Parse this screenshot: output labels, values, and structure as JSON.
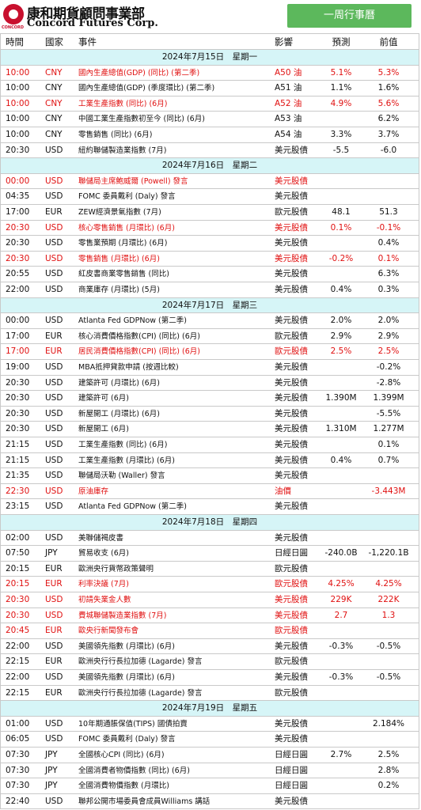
{
  "header": {
    "logo_brand": "CONCORD",
    "logo_title": "康和期貨顧問事業部",
    "logo_subtitle": "Concord Futures Corp.",
    "tab": "一周行事曆"
  },
  "table": {
    "columns": [
      "時間",
      "國家",
      "事件",
      "影響",
      "預測",
      "前值"
    ],
    "days": [
      {
        "date": "2024年7月15日　星期一",
        "rows": [
          {
            "time": "10:00",
            "country": "CNY",
            "event": "國內生產總值(GDP) (同比) (第二季)",
            "impact": "A50 油",
            "forecast": "5.1%",
            "previous": "5.3%",
            "important": true
          },
          {
            "time": "10:00",
            "country": "CNY",
            "event": "國內生產總值(GDP) (季度環比) (第二季)",
            "impact": "A51 油",
            "forecast": "1.1%",
            "previous": "1.6%"
          },
          {
            "time": "10:00",
            "country": "CNY",
            "event": "工業生產指數 (同比) (6月)",
            "impact": "A52 油",
            "forecast": "4.9%",
            "previous": "5.6%",
            "important": true
          },
          {
            "time": "10:00",
            "country": "CNY",
            "event": "中國工業生產指數初至今 (同比) (6月)",
            "impact": "A53 油",
            "previous": "6.2%"
          },
          {
            "time": "10:00",
            "country": "CNY",
            "event": "零售銷售 (同比) (6月)",
            "impact": "A54 油",
            "forecast": "3.3%",
            "previous": "3.7%"
          },
          {
            "time": "20:30",
            "country": "USD",
            "event": "紐約聯儲製造業指數 (7月)",
            "impact": "美元股債",
            "forecast": "-5.5",
            "previous": "-6.0"
          }
        ]
      },
      {
        "date": "2024年7月16日　星期二",
        "rows": [
          {
            "time": "00:00",
            "country": "USD",
            "event": "聯儲局主席鮑威爾 (Powell) 發言",
            "impact": "美元股債",
            "important": true
          },
          {
            "time": "04:35",
            "country": "USD",
            "event": "FOMC 委員戴利 (Daly) 發言",
            "impact": "美元股債"
          },
          {
            "time": "17:00",
            "country": "EUR",
            "event": "ZEW經濟景氣指數 (7月)",
            "impact": "歐元股債",
            "forecast": "48.1",
            "previous": "51.3"
          },
          {
            "time": "20:30",
            "country": "USD",
            "event": "核心零售銷售 (月環比) (6月)",
            "impact": "美元股債",
            "forecast": "0.1%",
            "previous": "-0.1%",
            "important": true
          },
          {
            "time": "20:30",
            "country": "USD",
            "event": "零售業預期 (月環比) (6月)",
            "impact": "美元股債",
            "previous": "0.4%"
          },
          {
            "time": "20:30",
            "country": "USD",
            "event": "零售銷售 (月環比) (6月)",
            "impact": "美元股債",
            "forecast": "-0.2%",
            "previous": "0.1%",
            "important": true
          },
          {
            "time": "20:55",
            "country": "USD",
            "event": "紅皮書商業零售銷售 (同比)",
            "impact": "美元股債",
            "previous": "6.3%"
          },
          {
            "time": "22:00",
            "country": "USD",
            "event": "商業庫存 (月環比) (5月)",
            "impact": "美元股債",
            "forecast": "0.4%",
            "previous": "0.3%"
          }
        ]
      },
      {
        "date": "2024年7月17日　星期三",
        "rows": [
          {
            "time": "00:00",
            "country": "USD",
            "event": "Atlanta Fed GDPNow (第二季)",
            "impact": "美元股債",
            "forecast": "2.0%",
            "previous": "2.0%"
          },
          {
            "time": "17:00",
            "country": "EUR",
            "event": "核心消費價格指數(CPI) (同比) (6月)",
            "impact": "歐元股債",
            "forecast": "2.9%",
            "previous": "2.9%"
          },
          {
            "time": "17:00",
            "country": "EUR",
            "event": "居民消費價格指數(CPI) (同比) (6月)",
            "impact": "歐元股債",
            "forecast": "2.5%",
            "previous": "2.5%",
            "important": true
          },
          {
            "time": "19:00",
            "country": "USD",
            "event": "MBA抵押貸款申請 (按週比較)",
            "impact": "美元股債",
            "previous": "-0.2%"
          },
          {
            "time": "20:30",
            "country": "USD",
            "event": "建築許可 (月環比) (6月)",
            "impact": "美元股債",
            "previous": "-2.8%"
          },
          {
            "time": "20:30",
            "country": "USD",
            "event": "建築許可 (6月)",
            "impact": "美元股債",
            "forecast": "1.390M",
            "previous": "1.399M"
          },
          {
            "time": "20:30",
            "country": "USD",
            "event": "新屋開工 (月環比) (6月)",
            "impact": "美元股債",
            "previous": "-5.5%"
          },
          {
            "time": "20:30",
            "country": "USD",
            "event": "新屋開工 (6月)",
            "impact": "美元股債",
            "forecast": "1.310M",
            "previous": "1.277M"
          },
          {
            "time": "21:15",
            "country": "USD",
            "event": "工業生產指數 (同比) (6月)",
            "impact": "美元股債",
            "previous": "0.1%"
          },
          {
            "time": "21:15",
            "country": "USD",
            "event": "工業生產指數 (月環比) (6月)",
            "impact": "美元股債",
            "forecast": "0.4%",
            "previous": "0.7%"
          },
          {
            "time": "21:35",
            "country": "USD",
            "event": "聯儲局沃勒 (Waller) 發言",
            "impact": "美元股債"
          },
          {
            "time": "22:30",
            "country": "USD",
            "event": "原油庫存",
            "impact": "油價",
            "previous": "-3.443M",
            "important": true
          },
          {
            "time": "23:15",
            "country": "USD",
            "event": "Atlanta Fed GDPNow (第二季)",
            "impact": "美元股債"
          }
        ]
      },
      {
        "date": "2024年7月18日　星期四",
        "rows": [
          {
            "time": "02:00",
            "country": "USD",
            "event": "美聯儲褐皮書",
            "impact": "美元股債"
          },
          {
            "time": "07:50",
            "country": "JPY",
            "event": "貿易收支 (6月)",
            "impact": "日經日圓",
            "forecast": "-240.0B",
            "previous": "-1,220.1B"
          },
          {
            "time": "20:15",
            "country": "EUR",
            "event": "歐洲央行貨幣政策聲明",
            "impact": "歐元股債"
          },
          {
            "time": "20:15",
            "country": "EUR",
            "event": "利率決議 (7月)",
            "impact": "歐元股債",
            "forecast": "4.25%",
            "previous": "4.25%",
            "important": true
          },
          {
            "time": "20:30",
            "country": "USD",
            "event": "初請失業金人數",
            "impact": "美元股債",
            "forecast": "229K",
            "previous": "222K",
            "important": true
          },
          {
            "time": "20:30",
            "country": "USD",
            "event": "費城聯儲製造業指數 (7月)",
            "impact": "美元股債",
            "forecast": "2.7",
            "previous": "1.3",
            "important": true
          },
          {
            "time": "20:45",
            "country": "EUR",
            "event": "歐央行新聞發布會",
            "impact": "歐元股債",
            "important": true
          },
          {
            "time": "22:00",
            "country": "USD",
            "event": "美國領先指數 (月環比) (6月)",
            "impact": "美元股債",
            "forecast": "-0.3%",
            "previous": "-0.5%"
          },
          {
            "time": "22:15",
            "country": "EUR",
            "event": "歐洲央行行長拉加德 (Lagarde) 發言",
            "impact": "歐元股債"
          },
          {
            "time": "22:00",
            "country": "USD",
            "event": "美國領先指數 (月環比) (6月)",
            "impact": "美元股債",
            "forecast": "-0.3%",
            "previous": "-0.5%"
          },
          {
            "time": "22:15",
            "country": "EUR",
            "event": "歐洲央行行長拉加德 (Lagarde) 發言",
            "impact": "歐元股債"
          }
        ]
      },
      {
        "date": "2024年7月19日　星期五",
        "rows": [
          {
            "time": "01:00",
            "country": "USD",
            "event": "10年期通脹保值(TIPS) 國債拍賣",
            "impact": "美元股債",
            "previous": "2.184%"
          },
          {
            "time": "06:05",
            "country": "USD",
            "event": "FOMC 委員戴利 (Daly) 發言",
            "impact": "美元股債"
          },
          {
            "time": "07:30",
            "country": "JPY",
            "event": "全國核心CPI (同比) (6月)",
            "impact": "日經日圓",
            "forecast": "2.7%",
            "previous": "2.5%"
          },
          {
            "time": "07:30",
            "country": "JPY",
            "event": "全國消費者物價指數 (同比) (6月)",
            "impact": "日經日圓",
            "previous": "2.8%"
          },
          {
            "time": "07:30",
            "country": "JPY",
            "event": "全國消費物價指數 (月環比)",
            "impact": "日經日圓",
            "previous": "0.2%"
          },
          {
            "time": "22:40",
            "country": "USD",
            "event": "聯邦公開市場委員會成員Williams 講話",
            "impact": "美元股債"
          }
        ]
      }
    ]
  }
}
